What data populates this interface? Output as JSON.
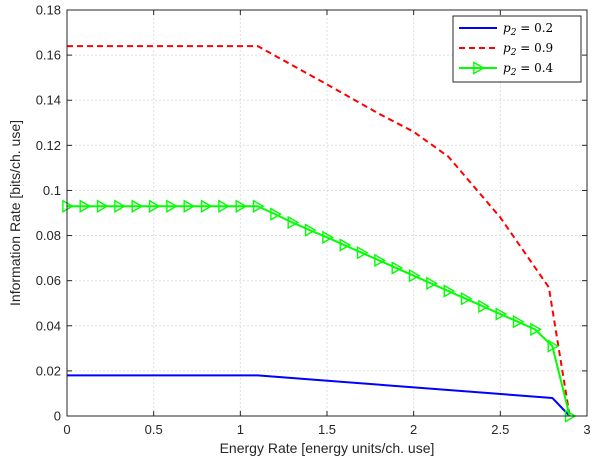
{
  "chart_data": {
    "type": "line",
    "xlabel": "Energy Rate [energy units/ch. use]",
    "ylabel": "Information Rate [bits/ch. use]",
    "xlim": [
      0,
      3
    ],
    "ylim": [
      0,
      0.18
    ],
    "xticks": [
      0,
      0.5,
      1,
      1.5,
      2,
      2.5,
      3
    ],
    "xtick_labels": [
      "0",
      "0.5",
      "1",
      "1.5",
      "2",
      "2.5",
      "3"
    ],
    "yticks": [
      0,
      0.02,
      0.04,
      0.06,
      0.08,
      0.1,
      0.12,
      0.14,
      0.16,
      0.18
    ],
    "ytick_labels": [
      "0",
      "0.02",
      "0.04",
      "0.06",
      "0.08",
      "0.1",
      "0.12",
      "0.14",
      "0.16",
      "0.18"
    ],
    "grid": true,
    "legend_position": "top-right",
    "series": [
      {
        "name": "p2 = 0.2",
        "legend_base": "p",
        "legend_sub": "2",
        "legend_rest": " = 0.2",
        "color": "#0000ff",
        "style": "solid",
        "marker": "none",
        "x": [
          0,
          1.1,
          2.8,
          2.9
        ],
        "y": [
          0.018,
          0.018,
          0.008,
          0
        ]
      },
      {
        "name": "p2 = 0.9",
        "legend_base": "p",
        "legend_sub": "2",
        "legend_rest": " = 0.9",
        "color": "#ff0000",
        "style": "dashed",
        "marker": "none",
        "x": [
          0,
          1.1,
          1.5,
          1.8,
          2.0,
          2.2,
          2.5,
          2.78,
          2.9
        ],
        "y": [
          0.164,
          0.164,
          0.147,
          0.134,
          0.126,
          0.115,
          0.088,
          0.057,
          0
        ]
      },
      {
        "name": "p2 = 0.4",
        "legend_base": "p",
        "legend_sub": "2",
        "legend_rest": " = 0.4",
        "color": "#00ff00",
        "style": "solid",
        "marker": "triangle-right",
        "x": [
          0,
          0.1,
          0.2,
          0.3,
          0.4,
          0.5,
          0.6,
          0.7,
          0.8,
          0.9,
          1.0,
          1.1,
          1.2,
          1.3,
          1.4,
          1.5,
          1.6,
          1.7,
          1.8,
          1.9,
          2.0,
          2.1,
          2.2,
          2.3,
          2.4,
          2.5,
          2.6,
          2.7,
          2.8,
          2.9
        ],
        "y": [
          0.093,
          0.093,
          0.093,
          0.093,
          0.093,
          0.093,
          0.093,
          0.093,
          0.093,
          0.093,
          0.093,
          0.093,
          0.0895,
          0.0858,
          0.0824,
          0.0792,
          0.0758,
          0.0724,
          0.069,
          0.0656,
          0.0622,
          0.0588,
          0.0554,
          0.052,
          0.0486,
          0.0452,
          0.0418,
          0.0384,
          0.031,
          0
        ]
      }
    ]
  }
}
